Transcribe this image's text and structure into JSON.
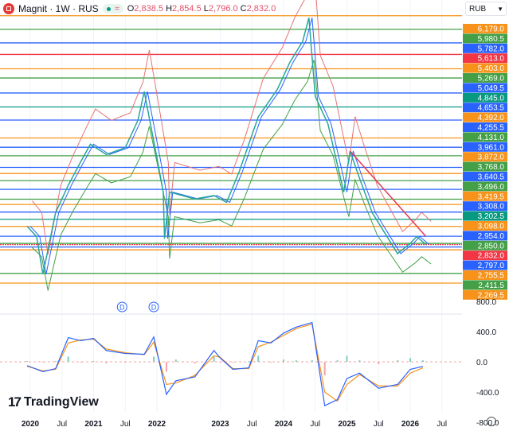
{
  "header": {
    "symbol": "Magnit",
    "interval": "1W",
    "exchange": "RUS",
    "title": "Magnit · 1W · RUS",
    "open_label": "O",
    "open": "2,838.5",
    "high_label": "H",
    "high": "2,854.5",
    "low_label": "L",
    "low": "2,796.0",
    "close_label": "C",
    "close": "2,832.0",
    "pill_icon": "approx-icon"
  },
  "currency": {
    "label": "RUB"
  },
  "price_levels": [
    {
      "label": "6,179.0",
      "price": 6179.0,
      "color": "#f7931a"
    },
    {
      "label": "5,980.5",
      "price": 5980.5,
      "color": "#43a047"
    },
    {
      "label": "5,782.0",
      "price": 5782.0,
      "color": "#2962ff"
    },
    {
      "label": "5,613.0",
      "price": 5613.0,
      "color": "#f23645"
    },
    {
      "label": "5,403.0",
      "price": 5403.0,
      "color": "#f7931a"
    },
    {
      "label": "5,269.0",
      "price": 5269.0,
      "color": "#43a047"
    },
    {
      "label": "5,049.5",
      "price": 5049.5,
      "color": "#2962ff"
    },
    {
      "label": "4,845.0",
      "price": 4845.0,
      "color": "#089981"
    },
    {
      "label": "4,653.5",
      "price": 4653.5,
      "color": "#2962ff"
    },
    {
      "label": "4,392.0",
      "price": 4392.0,
      "color": "#f7931a"
    },
    {
      "label": "4,255.5",
      "price": 4255.5,
      "color": "#2962ff"
    },
    {
      "label": "4,131.0",
      "price": 4131.0,
      "color": "#43a047"
    },
    {
      "label": "3,961.0",
      "price": 3961.0,
      "color": "#2962ff"
    },
    {
      "label": "3,872.0",
      "price": 3872.0,
      "color": "#f7931a"
    },
    {
      "label": "3,768.0",
      "price": 3768.0,
      "color": "#43a047"
    },
    {
      "label": "3,640.5",
      "price": 3640.5,
      "color": "#2962ff"
    },
    {
      "label": "3,496.0",
      "price": 3496.0,
      "color": "#43a047"
    },
    {
      "label": "3,419.5",
      "price": 3419.5,
      "color": "#f7931a"
    },
    {
      "label": "3,308.0",
      "price": 3308.0,
      "color": "#2962ff"
    },
    {
      "label": "3,202.5",
      "price": 3202.5,
      "color": "#089981"
    },
    {
      "label": "3,098.0",
      "price": 3098.0,
      "color": "#f7931a"
    },
    {
      "label": "2,954.0",
      "price": 2954.0,
      "color": "#2962ff"
    },
    {
      "label": "2,850.0",
      "price": 2850.0,
      "color": "#43a047"
    },
    {
      "label": "2,832.0",
      "price": 2832.0,
      "color": "#f23645"
    },
    {
      "label": "2,797.0",
      "price": 2797.0,
      "color": "#2962ff"
    },
    {
      "label": "2,755.5",
      "price": 2755.5,
      "color": "#f7931a"
    },
    {
      "label": "2,411.5",
      "price": 2411.5,
      "color": "#43a047"
    },
    {
      "label": "2,269.5",
      "price": 2269.5,
      "color": "#f7931a"
    }
  ],
  "time_axis": [
    {
      "label": "2020",
      "t": 2020.0,
      "bold": true
    },
    {
      "label": "Jul",
      "t": 2020.5
    },
    {
      "label": "2021",
      "t": 2021.0,
      "bold": true
    },
    {
      "label": "Jul",
      "t": 2021.5
    },
    {
      "label": "2022",
      "t": 2022.0,
      "bold": true
    },
    {
      "label": "2023",
      "t": 2023.0,
      "bold": true
    },
    {
      "label": "Jul",
      "t": 2023.5
    },
    {
      "label": "2024",
      "t": 2024.0,
      "bold": true
    },
    {
      "label": "Jul",
      "t": 2024.5
    },
    {
      "label": "2025",
      "t": 2025.0,
      "bold": true
    },
    {
      "label": "Jul",
      "t": 2025.5
    },
    {
      "label": "2026",
      "t": 2026.0,
      "bold": true
    },
    {
      "label": "Jul",
      "t": 2026.5
    }
  ],
  "macd_axis": [
    {
      "label": "800.0",
      "v": 800
    },
    {
      "label": "400.0",
      "v": 400
    },
    {
      "label": "0.0",
      "v": 0
    },
    {
      "label": "-400.0",
      "v": -400
    },
    {
      "label": "-800.0",
      "v": -800
    }
  ],
  "dividend_markers": [
    {
      "label": "D",
      "t": 2021.45
    },
    {
      "label": "D",
      "t": 2021.95
    }
  ],
  "chart_data": {
    "type": "line",
    "price_series": {
      "t": [
        2019.95,
        2020.1,
        2020.2,
        2020.4,
        2020.6,
        2020.8,
        2020.95,
        2021.2,
        2021.5,
        2021.7,
        2021.8,
        2022.0,
        2022.1,
        2022.12,
        2022.2,
        2022.4,
        2022.6,
        2022.9,
        2023.1,
        2023.3,
        2023.6,
        2023.9,
        2024.1,
        2024.3,
        2024.4,
        2024.5,
        2024.7,
        2024.95,
        2025.05,
        2025.2,
        2025.4,
        2025.6,
        2025.8,
        2026.0,
        2026.1,
        2026.25
      ],
      "price": [
        3100,
        2950,
        2400,
        3300,
        3700,
        4050,
        4300,
        4150,
        4250,
        4650,
        5070,
        4100,
        3600,
        2920,
        3600,
        3550,
        3500,
        3550,
        3450,
        3900,
        4700,
        5100,
        5500,
        5800,
        6150,
        5000,
        4600,
        3600,
        4200,
        3800,
        3300,
        3000,
        2700,
        2850,
        2950,
        2832
      ]
    },
    "macd": {
      "t": [
        2019.95,
        2020.2,
        2020.4,
        2020.6,
        2020.8,
        2021.0,
        2021.2,
        2021.5,
        2021.8,
        2021.95,
        2022.15,
        2022.3,
        2022.6,
        2022.9,
        2023.0,
        2023.2,
        2023.45,
        2023.6,
        2023.8,
        2024.0,
        2024.2,
        2024.45,
        2024.65,
        2024.85,
        2025.0,
        2025.2,
        2025.5,
        2025.8,
        2026.0,
        2026.2
      ],
      "macd": [
        -50,
        -130,
        -90,
        320,
        280,
        310,
        150,
        110,
        100,
        330,
        -430,
        -250,
        -200,
        150,
        50,
        -100,
        -80,
        280,
        250,
        380,
        460,
        520,
        -580,
        -500,
        -220,
        -150,
        -350,
        -300,
        -100,
        -60
      ],
      "signal": [
        -60,
        -120,
        -100,
        250,
        290,
        300,
        170,
        120,
        95,
        260,
        -300,
        -280,
        -180,
        80,
        60,
        -90,
        -90,
        200,
        260,
        350,
        440,
        500,
        -400,
        -520,
        -300,
        -170,
        -320,
        -320,
        -150,
        -80
      ]
    },
    "y_scale": "price"
  }
}
